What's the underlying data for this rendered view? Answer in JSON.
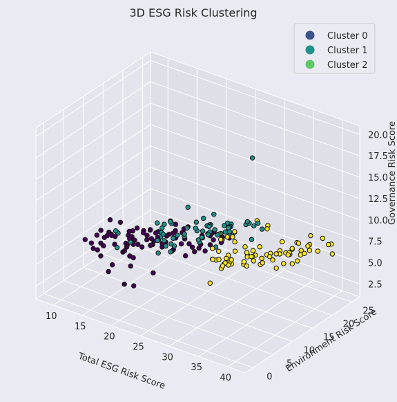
{
  "chart_data": {
    "type": "scatter",
    "title": "3D ESG Risk Clustering",
    "xlabel": "Total ESG Risk Score",
    "ylabel": "Environment Risk Score",
    "zlabel": "Governance Risk Score",
    "x_ticks": [
      "10",
      "15",
      "20",
      "25",
      "30",
      "35",
      "40"
    ],
    "y_ticks": [
      "0",
      "5",
      "10",
      "15",
      "20",
      "25"
    ],
    "z_ticks": [
      "2.5",
      "5.0",
      "7.5",
      "10.0",
      "12.5",
      "15.0",
      "17.5",
      "20.0"
    ],
    "xlim": [
      7,
      43
    ],
    "ylim": [
      -2,
      27
    ],
    "zlim": [
      1,
      21
    ],
    "grid": true,
    "legend_position": "top-right",
    "legend": [
      {
        "label": "Cluster 0",
        "color": "#3b528b"
      },
      {
        "label": "Cluster 1",
        "color": "#21918c"
      },
      {
        "label": "Cluster 2",
        "color": "#5ec962"
      }
    ],
    "series": [
      {
        "name": "Cluster 0",
        "color": "#440154",
        "x": [
          12.7,
          10.3,
          10.3,
          11.7,
          15.6,
          15.0,
          13.8,
          12.1,
          17.5,
          18.8,
          18.0,
          17.2,
          21.4,
          11.3,
          12.4,
          11.0,
          10.5,
          11.5,
          12.4,
          13.3,
          11.6,
          12.9,
          14.0,
          11.2,
          13.3,
          12.5,
          14.8,
          14.3,
          11.1,
          14.9,
          15.0,
          15.2,
          16.1,
          15.5,
          15.5,
          16.2,
          17.7,
          14.9,
          16.6,
          17.7,
          17.5,
          17.3,
          19.1,
          15.2,
          16.1,
          15.7,
          17.7,
          20.5,
          17.6,
          19.9,
          18.9,
          17.1,
          17.3,
          18.7,
          19.6,
          19.9,
          20.1,
          22.0,
          20.6,
          18.6,
          21.8,
          20.3,
          20.8,
          21.0,
          22.6,
          23.8,
          23.1,
          24.2,
          24.6,
          24.2,
          20.1,
          22.7,
          23.3,
          18.5,
          25.3,
          13.6,
          17.1,
          18.4,
          16.0,
          22.9,
          19.9,
          21.8,
          14.6,
          16.2,
          16.9,
          21.7,
          24.7,
          23.8,
          23.6,
          25.6,
          26.8,
          26.2,
          21.9,
          24.9
        ],
        "y": [
          5.2,
          7.2,
          5.6,
          5.6,
          4.7,
          4.6,
          4.4,
          7.6,
          6.3,
          5.4,
          5.8,
          5.4,
          6.5,
          7.1,
          8.1,
          10.6,
          9.3,
          7.8,
          10.0,
          7.9,
          10.3,
          9.7,
          11.1,
          10.6,
          8.8,
          11.3,
          11.2,
          10.9,
          9.3,
          10.9,
          10.7,
          8.7,
          9.6,
          8.5,
          8.6,
          8.2,
          10.4,
          8.4,
          9.7,
          11.8,
          9.4,
          12.1,
          11.0,
          13.2,
          12.7,
          12.4,
          12.6,
          11.0,
          11.4,
          11.0,
          11.5,
          12.1,
          13.8,
          13.9,
          11.4,
          14.4,
          13.4,
          13.8,
          15.0,
          16.3,
          13.9,
          15.9,
          14.5,
          15.9,
          17.1,
          16.8,
          18.4,
          17.3,
          17.2,
          16.8,
          16.0,
          13.7,
          16.2,
          16.4,
          18.3,
          13.9,
          13.0,
          14.9,
          13.7,
          14.2,
          11.6,
          17.5,
          11.1,
          6.9,
          8.1,
          10.8,
          14.8,
          15.0,
          18.5,
          19.6,
          15.8,
          18.7,
          10.9,
          11.8
        ],
        "z": [
          5.9,
          5.5,
          6.4,
          5.7,
          5.0,
          4.1,
          5.7,
          5.5,
          6.0,
          3.1,
          5.1,
          2.9,
          4.9,
          6.7,
          6.6,
          5.9,
          6.4,
          5.6,
          5.0,
          6.9,
          5.9,
          6.7,
          6.1,
          7.4,
          6.5,
          7.2,
          5.2,
          6.7,
          5.7,
          6.9,
          5.9,
          6.2,
          6.5,
          5.9,
          6.1,
          7.1,
          7.2,
          5.2,
          6.1,
          5.7,
          6.1,
          6.2,
          7.1,
          6.3,
          5.6,
          6.4,
          6.8,
          6.9,
          5.7,
          6.6,
          6.6,
          7.2,
          6.5,
          6.3,
          6.0,
          6.2,
          7.1,
          4.8,
          6.8,
          6.9,
          6.7,
          6.9,
          5.7,
          7.3,
          6.3,
          6.9,
          6.0,
          6.9,
          7.2,
          5.7,
          6.4,
          6.4,
          6.5,
          6.1,
          6.4,
          6.0,
          5.6,
          6.1,
          6.4,
          5.9,
          6.5,
          4.5,
          6.1,
          6.1,
          5.1,
          6.2,
          5.7,
          6.2,
          5.6,
          7.4,
          6.9,
          6.4,
          6.4,
          6.6
        ]
      },
      {
        "name": "Cluster 1",
        "color": "#21918c",
        "x": [
          26.1,
          20.6,
          15.8,
          14.0,
          14.2,
          20.3,
          21.8,
          17.7,
          21.6,
          21.7,
          21.8,
          19.7,
          23.0,
          19.6,
          20.0,
          19.7,
          19.3,
          21.2,
          22.1,
          21.5,
          19.9,
          19.6,
          17.6,
          22.2,
          18.6,
          23.1,
          25.3,
          25.1,
          25.1,
          26.8,
          23.8,
          25.0,
          24.6,
          26.6,
          26.5,
          24.7,
          24.9,
          22.4,
          28.3,
          28.0,
          28.0,
          27.4,
          27.5,
          24.1,
          26.3,
          27.2,
          19.7,
          23.6,
          22.3,
          22.3,
          23.1,
          24.8,
          28.0,
          28.0,
          28.2,
          27.4,
          28.0,
          29.7,
          31.4,
          29.0,
          30.1,
          30.4,
          26.2,
          26.4,
          30.4,
          31.0
        ],
        "y": [
          24.7,
          10.2,
          5.6,
          7.9,
          8.2,
          9.2,
          7.2,
          6.2,
          9.4,
          10.6,
          10.3,
          11.1,
          9.2,
          11.7,
          10.8,
          13.3,
          11.5,
          12.9,
          10.8,
          9.1,
          13.4,
          13.5,
          13.1,
          13.2,
          13.4,
          11.9,
          12.5,
          12.5,
          13.6,
          14.4,
          13.7,
          15.1,
          14.1,
          16.3,
          14.6,
          15.3,
          15.7,
          13.6,
          15.4,
          17.4,
          15.8,
          16.5,
          15.8,
          17.9,
          17.3,
          17.6,
          17.8,
          17.8,
          17.9,
          16.1,
          15.1,
          15.7,
          16.1,
          16.2,
          15.8,
          14.8,
          13.1,
          18.6,
          18.3,
          18.8,
          19.2,
          17.1,
          13.6,
          18.9,
          20.8,
          17.3
        ],
        "z": [
          13.9,
          8.1,
          6.8,
          7.6,
          7.3,
          7.6,
          7.1,
          7.7,
          7.2,
          7.1,
          6.3,
          7.8,
          8.5,
          6.3,
          8.5,
          8.4,
          7.1,
          7.3,
          6.9,
          7.9,
          8.2,
          8.4,
          7.8,
          7.3,
          7.8,
          8.2,
          7.6,
          7.8,
          8.5,
          6.8,
          8.5,
          7.6,
          7.5,
          7.0,
          8.7,
          8.5,
          7.7,
          8.2,
          9.1,
          7.9,
          8.6,
          9.1,
          8.3,
          8.9,
          8.3,
          8.3,
          8.7,
          7.6,
          8.0,
          8.1,
          7.6,
          8.5,
          8.9,
          8.0,
          8.5,
          8.4,
          8.9,
          9.0,
          9.5,
          8.6,
          8.6,
          9.8,
          9.3,
          8.0,
          7.8,
          7.8
        ]
      },
      {
        "name": "Cluster 2",
        "color": "#fde725",
        "x": [
          31.4,
          30.0,
          29.0,
          31.4,
          31.3,
          30.6,
          32.2,
          28.9,
          28.2,
          31.7,
          27.4,
          29.4,
          30.6,
          33.3,
          30.2,
          33.9,
          32.9,
          28.0,
          30.4,
          34.6,
          34.5,
          32.7,
          34.4,
          33.1,
          31.0,
          29.9,
          33.2,
          32.6,
          35.6,
          35.6,
          34.3,
          38.3,
          34.4,
          38.8,
          37.8,
          36.3,
          35.1,
          35.8,
          37.5,
          36.8,
          37.5,
          38.8,
          37.5,
          37.6,
          38.7,
          39.2,
          38.8,
          40.0,
          39.9,
          40.5,
          40.0,
          42.8,
          42.6,
          43.8,
          41.7,
          34.7,
          36.4,
          38.7,
          33.1,
          36.5,
          32.8,
          31.1,
          29.5,
          33.4,
          28.4,
          30.3,
          34.4,
          37.2,
          32.9,
          30.3,
          29.0,
          34.3,
          37.9,
          38.2,
          38.7
        ],
        "y": [
          6.2,
          10.5,
          11.9,
          10.0,
          11.2,
          10.2,
          8.2,
          11.4,
          11.5,
          10.4,
          12.7,
          9.8,
          10.9,
          12.8,
          12.6,
          11.1,
          9.4,
          13.4,
          14.0,
          14.2,
          10.9,
          12.8,
          12.5,
          13.2,
          12.2,
          12.5,
          15.0,
          15.3,
          15.3,
          13.3,
          15.0,
          12.8,
          12.8,
          16.1,
          15.4,
          16.6,
          19.0,
          17.4,
          18.0,
          17.4,
          18.0,
          18.2,
          17.4,
          17.1,
          20.2,
          19.9,
          20.5,
          16.6,
          15.8,
          21.3,
          17.4,
          19.4,
          20.4,
          18.9,
          18.3,
          15.7,
          14.7,
          15.2,
          13.0,
          13.8,
          13.0,
          12.9,
          15.2,
          17.7,
          13.3,
          13.5,
          12.2,
          14.4,
          18.6,
          19.7,
          14.1,
          14.5,
          18.6,
          18.6,
          20.9
        ],
        "z": [
          6.2,
          7.3,
          7.6,
          7.4,
          7.0,
          6.5,
          7.8,
          6.7,
          6.6,
          7.1,
          7.3,
          7.4,
          6.8,
          7.7,
          7.2,
          7.8,
          8.3,
          8.9,
          7.3,
          6.7,
          7.5,
          6.7,
          8.1,
          7.7,
          6.5,
          6.8,
          7.2,
          7.5,
          7.9,
          7.4,
          7.1,
          7.6,
          7.5,
          7.2,
          7.2,
          7.6,
          8.0,
          7.6,
          8.0,
          7.6,
          8.1,
          7.6,
          7.6,
          7.9,
          8.0,
          7.7,
          8.1,
          8.9,
          7.9,
          9.0,
          8.3,
          9.4,
          9.1,
          8.7,
          8.7,
          7.4,
          7.5,
          8.5,
          8.1,
          8.2,
          8.7,
          8.9,
          9.0,
          9.5,
          8.4,
          9.1,
          8.2,
          8.5,
          9.5,
          9.1,
          8.6,
          8.6,
          8.7,
          8.7,
          9.0
        ]
      }
    ]
  }
}
